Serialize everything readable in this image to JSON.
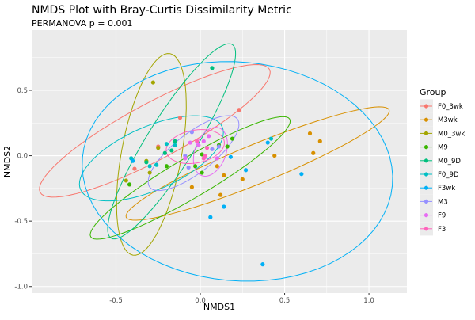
{
  "chart_data": {
    "type": "scatter",
    "title": "NMDS Plot with Bray-Curtis Dissimilarity Metric",
    "subtitle": "PERMANOVA p = 0.001",
    "xlabel": "NMDS1",
    "ylabel": "NMDS2",
    "xlim": [
      -1.0,
      1.225
    ],
    "ylim": [
      -1.05,
      0.96
    ],
    "xticks": [
      -0.5,
      0.0,
      0.5,
      1.0
    ],
    "xtick_labels": [
      "-0.5",
      "0.0",
      "0.5",
      "1.0"
    ],
    "yticks": [
      -1.0,
      -0.5,
      0.0,
      0.5
    ],
    "ytick_labels": [
      "-1.0",
      "-0.5",
      "0.0",
      "0.5"
    ],
    "grid": true,
    "legend": {
      "title": "Group",
      "placement": "right"
    },
    "series": [
      {
        "name": "F0_3wk",
        "color": "#F8766D",
        "points": [
          [
            0.23,
            0.35
          ],
          [
            -0.12,
            0.29
          ],
          [
            -0.25,
            0.07
          ],
          [
            -0.39,
            -0.1
          ]
        ],
        "ellipse": {
          "center": [
            -0.27,
            0.19
          ],
          "a": [
            0.68,
            0.47
          ],
          "b": [
            0.077,
            -0.19
          ]
        }
      },
      {
        "name": "M3wk",
        "color": "#D89000",
        "points": [
          [
            0.65,
            0.17
          ],
          [
            0.71,
            0.11
          ],
          [
            0.67,
            0.02
          ],
          [
            0.44,
            0.0
          ],
          [
            0.25,
            -0.18
          ],
          [
            0.14,
            -0.15
          ],
          [
            0.1,
            -0.08
          ],
          [
            -0.05,
            -0.24
          ],
          [
            0.12,
            -0.3
          ]
        ],
        "ellipse": {
          "center": [
            0.34,
            -0.06
          ],
          "a": [
            0.78,
            0.41
          ],
          "b": [
            0.04,
            -0.14
          ]
        }
      },
      {
        "name": "M0_3wk",
        "color": "#A3A500",
        "points": [
          [
            -0.28,
            0.56
          ],
          [
            -0.25,
            0.06
          ],
          [
            -0.32,
            -0.04
          ],
          [
            -0.3,
            -0.13
          ],
          [
            -0.44,
            -0.19
          ]
        ],
        "ellipse": {
          "center": [
            -0.29,
            0.01
          ],
          "a": [
            0.11,
            0.77
          ],
          "b": [
            0.175,
            -0.04
          ]
        }
      },
      {
        "name": "M9",
        "color": "#39B600",
        "points": [
          [
            0.19,
            0.13
          ],
          [
            0.11,
            0.08
          ],
          [
            0.16,
            0.07
          ],
          [
            0.01,
            0.01
          ],
          [
            -0.03,
            -0.08
          ],
          [
            0.01,
            -0.13
          ],
          [
            -0.2,
            -0.08
          ],
          [
            -0.42,
            -0.22
          ]
        ],
        "ellipse": {
          "center": [
            -0.06,
            -0.17
          ],
          "a": [
            0.59,
            0.45
          ],
          "b": [
            0.06,
            -0.13
          ]
        }
      },
      {
        "name": "M0_9D",
        "color": "#00BF7D",
        "points": [
          [
            0.07,
            0.67
          ],
          [
            -0.15,
            0.11
          ],
          [
            -0.17,
            0.04
          ],
          [
            -0.21,
            0.02
          ],
          [
            -0.32,
            -0.05
          ]
        ],
        "ellipse": {
          "center": [
            -0.17,
            0.11
          ],
          "a": [
            0.36,
            0.74
          ],
          "b": [
            0.12,
            -0.1
          ]
        }
      },
      {
        "name": "F0_9D",
        "color": "#00BFC4",
        "points": [
          [
            -0.15,
            0.08
          ],
          [
            -0.41,
            -0.02
          ],
          [
            -0.3,
            -0.08
          ],
          [
            -0.26,
            -0.07
          ],
          [
            -0.2,
            0.09
          ],
          [
            0.42,
            0.13
          ]
        ],
        "ellipse": {
          "center": [
            -0.29,
            -0.02
          ],
          "a": [
            0.42,
            0.24
          ],
          "b": [
            0.077,
            -0.22
          ]
        }
      },
      {
        "name": "F3wk",
        "color": "#00B0F6",
        "points": [
          [
            0.18,
            -0.01
          ],
          [
            0.27,
            -0.11
          ],
          [
            0.14,
            -0.39
          ],
          [
            -0.4,
            -0.04
          ],
          [
            0.06,
            -0.47
          ],
          [
            0.37,
            -0.83
          ],
          [
            0.6,
            -0.14
          ],
          [
            0.4,
            0.1
          ]
        ],
        "ellipse": {
          "center": [
            0.22,
            -0.12
          ],
          "a": [
            0.91,
            -0.18
          ],
          "b": [
            -0.14,
            -0.82
          ]
        }
      },
      {
        "name": "M3",
        "color": "#9590FF",
        "points": [
          [
            -0.05,
            0.18
          ],
          [
            0.11,
            0.07
          ],
          [
            0.07,
            0.05
          ],
          [
            -0.09,
            0.0
          ],
          [
            -0.07,
            -0.09
          ]
        ],
        "ellipse": {
          "center": [
            -0.04,
            0.02
          ],
          "a": [
            0.26,
            0.26
          ],
          "b": [
            0.07,
            -0.12
          ]
        }
      },
      {
        "name": "F9",
        "color": "#E76BF3",
        "points": [
          [
            -0.01,
            0.08
          ],
          [
            0.05,
            0.15
          ],
          [
            0.02,
            0.11
          ],
          [
            0.1,
            -0.02
          ],
          [
            0.03,
            -0.01
          ],
          [
            -0.09,
            -0.02
          ],
          [
            -0.06,
            0.1
          ]
        ],
        "ellipse": {
          "center": [
            0.06,
            0.03
          ],
          "a": [
            0.056,
            0.18
          ],
          "b": [
            0.084,
            -0.05
          ]
        }
      },
      {
        "name": "F3",
        "color": "#FF62BC",
        "points": [
          [
            0.04,
            0.06
          ],
          [
            0.03,
            0.0
          ],
          [
            0.02,
            -0.02
          ],
          [
            -0.02,
            0.11
          ]
        ],
        "ellipse": {
          "center": [
            -0.03,
            0.07
          ],
          "a": [
            0.17,
            0.05
          ],
          "b": [
            0.03,
            -0.12
          ]
        }
      }
    ]
  }
}
